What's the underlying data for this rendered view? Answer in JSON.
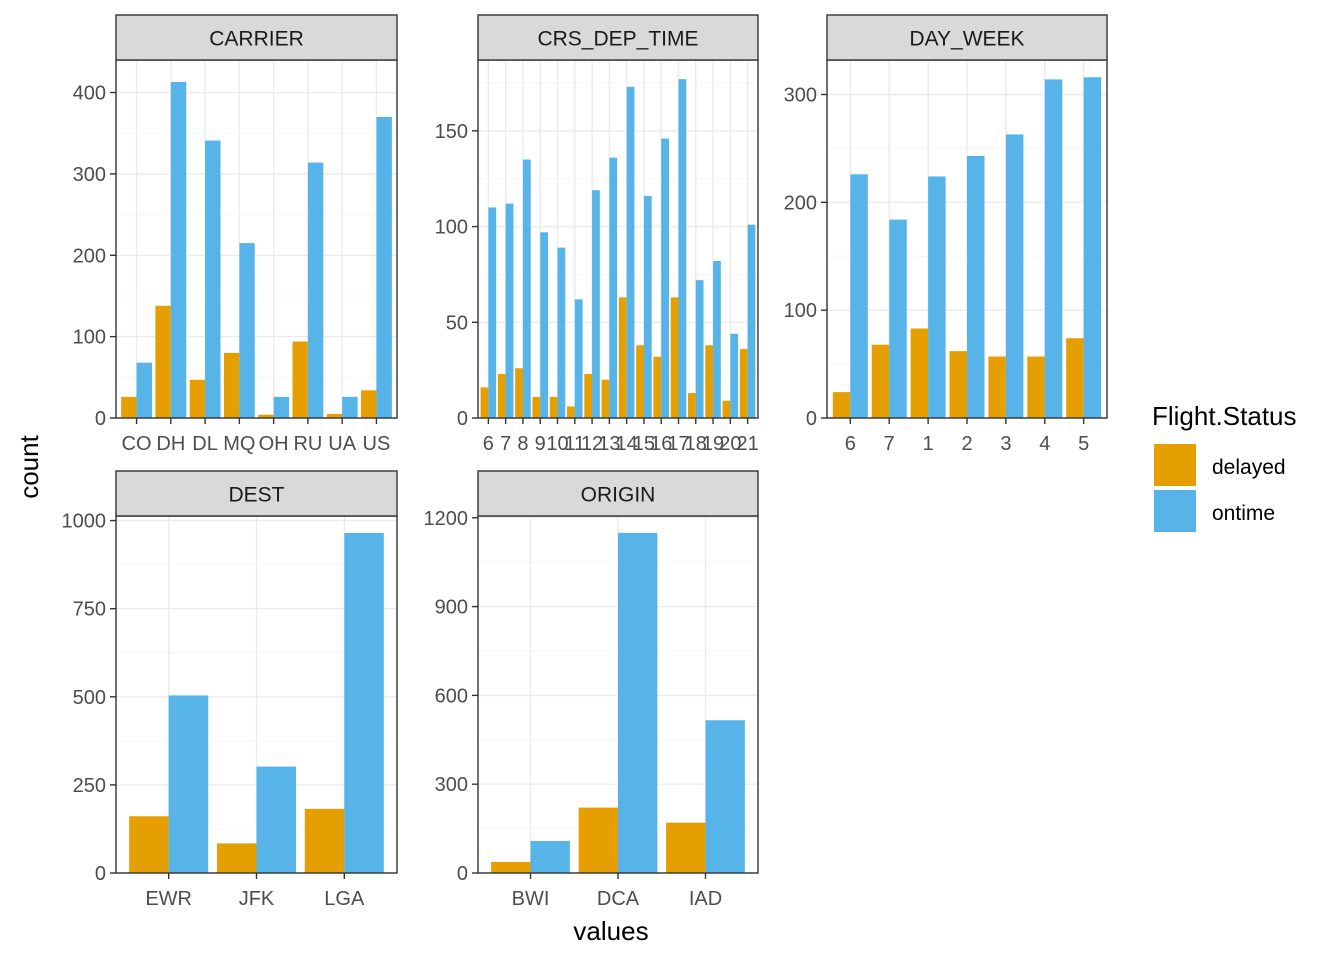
{
  "colors": {
    "delayed": "#E69F00",
    "ontime": "#56B4E9",
    "strip_bg": "#D9D9D9",
    "grid_major": "#EBEBEB",
    "grid_minor": "#F5F5F5",
    "frame": "#333333"
  },
  "axis": {
    "x_title": "values",
    "y_title": "count"
  },
  "legend": {
    "title": "Flight.Status",
    "items": [
      {
        "key": "delayed",
        "label": "delayed"
      },
      {
        "key": "ontime",
        "label": "ontime"
      }
    ]
  },
  "chart_data": [
    {
      "type": "bar",
      "title": "CARRIER",
      "categories": [
        "CO",
        "DH",
        "DL",
        "MQ",
        "OH",
        "RU",
        "UA",
        "US"
      ],
      "series": [
        {
          "name": "delayed",
          "values": [
            26,
            138,
            47,
            80,
            4,
            94,
            5,
            34
          ]
        },
        {
          "name": "ontime",
          "values": [
            68,
            413,
            341,
            215,
            26,
            314,
            26,
            370
          ]
        }
      ],
      "ylim": [
        0,
        440
      ],
      "yticks": [
        0,
        100,
        200,
        300,
        400
      ]
    },
    {
      "type": "bar",
      "title": "CRS_DEP_TIME",
      "categories": [
        "6",
        "7",
        "8",
        "9",
        "10",
        "11",
        "12",
        "13",
        "14",
        "15",
        "16",
        "17",
        "18",
        "19",
        "20",
        "21"
      ],
      "series": [
        {
          "name": "delayed",
          "values": [
            16,
            23,
            26,
            11,
            11,
            6,
            23,
            20,
            63,
            38,
            32,
            63,
            13,
            38,
            9,
            36
          ]
        },
        {
          "name": "ontime",
          "values": [
            110,
            112,
            135,
            97,
            89,
            62,
            119,
            136,
            173,
            116,
            146,
            177,
            72,
            82,
            44,
            101
          ]
        }
      ],
      "ylim": [
        0,
        187
      ],
      "yticks": [
        0,
        50,
        100,
        150
      ]
    },
    {
      "type": "bar",
      "title": "DAY_WEEK",
      "categories": [
        "6",
        "7",
        "1",
        "2",
        "3",
        "4",
        "5"
      ],
      "series": [
        {
          "name": "delayed",
          "values": [
            24,
            68,
            83,
            62,
            57,
            57,
            74
          ]
        },
        {
          "name": "ontime",
          "values": [
            226,
            184,
            224,
            243,
            263,
            314,
            316
          ]
        }
      ],
      "ylim": [
        0,
        332
      ],
      "yticks": [
        0,
        100,
        200,
        300
      ]
    },
    {
      "type": "bar",
      "title": "DEST",
      "categories": [
        "EWR",
        "JFK",
        "LGA"
      ],
      "series": [
        {
          "name": "delayed",
          "values": [
            161,
            84,
            182
          ]
        },
        {
          "name": "ontime",
          "values": [
            504,
            302,
            965
          ]
        }
      ],
      "ylim": [
        0,
        1013
      ],
      "yticks": [
        0,
        250,
        500,
        750,
        1000
      ]
    },
    {
      "type": "bar",
      "title": "ORIGIN",
      "categories": [
        "BWI",
        "DCA",
        "IAD"
      ],
      "series": [
        {
          "name": "delayed",
          "values": [
            37,
            221,
            170
          ]
        },
        {
          "name": "ontime",
          "values": [
            108,
            1149,
            516
          ]
        }
      ],
      "ylim": [
        0,
        1206
      ],
      "yticks": [
        0,
        300,
        600,
        900,
        1200
      ]
    }
  ]
}
